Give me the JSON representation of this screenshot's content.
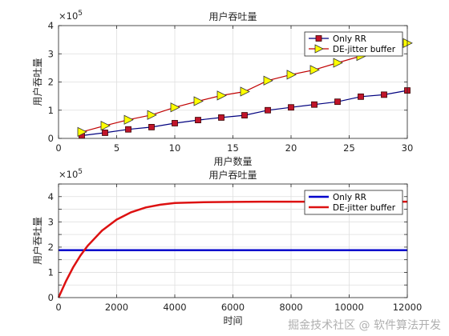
{
  "watermark": "掘金技术社区 @ 软件算法开发",
  "chart_data": [
    {
      "type": "line",
      "title": "用户吞吐量",
      "xlabel": "用户数量",
      "ylabel": "用户吞吐量",
      "exponent_label": "×10",
      "exponent_power": "5",
      "xlim": [
        0,
        30
      ],
      "ylim": [
        0,
        4
      ],
      "xticks": [
        "0",
        "5",
        "10",
        "15",
        "20",
        "25",
        "30"
      ],
      "yticks": [
        "0",
        "1",
        "2",
        "3",
        "4"
      ],
      "grid": true,
      "legend_position": "top-right",
      "x": [
        2,
        4,
        6,
        8,
        10,
        12,
        14,
        16,
        18,
        20,
        22,
        24,
        26,
        28,
        30
      ],
      "series": [
        {
          "name": "Only RR",
          "color": "#00007f",
          "marker": "square",
          "marker_color": "#c0142a",
          "values": [
            0.1,
            0.2,
            0.32,
            0.4,
            0.54,
            0.65,
            0.74,
            0.82,
            1.0,
            1.1,
            1.2,
            1.3,
            1.48,
            1.55,
            1.7
          ]
        },
        {
          "name": "DE-jitter buffer",
          "color": "#c00000",
          "marker": "triangle-right",
          "marker_color": "#ffff00",
          "values": [
            0.23,
            0.45,
            0.66,
            0.83,
            1.1,
            1.32,
            1.52,
            1.66,
            2.05,
            2.26,
            2.43,
            2.68,
            2.92,
            3.14,
            3.38
          ]
        }
      ]
    },
    {
      "type": "line",
      "title": "用户吞吐量",
      "xlabel": "时间",
      "ylabel": "用户吞吐量",
      "exponent_label": "×10",
      "exponent_power": "5",
      "xlim": [
        0,
        12000
      ],
      "ylim": [
        0,
        4.5
      ],
      "xticks": [
        "0",
        "2000",
        "4000",
        "6000",
        "8000",
        "10000",
        "12000"
      ],
      "yticks": [
        "0",
        "0.5",
        "1",
        "1.5",
        "2",
        "2.5",
        "3",
        "3.5",
        "4",
        "4.5"
      ],
      "ytick_labels": [
        "0",
        "",
        "1",
        "",
        "2",
        "",
        "3",
        "",
        "4",
        ""
      ],
      "grid": true,
      "legend_position": "top-right",
      "x": [
        0,
        250,
        500,
        750,
        1000,
        1500,
        2000,
        2500,
        3000,
        3500,
        4000,
        5000,
        6000,
        7000,
        8000,
        9000,
        10000,
        11000,
        12000
      ],
      "series": [
        {
          "name": "Only RR",
          "color": "#0000cc",
          "values": [
            1.88,
            1.88,
            1.88,
            1.88,
            1.88,
            1.88,
            1.88,
            1.88,
            1.88,
            1.88,
            1.88,
            1.88,
            1.88,
            1.88,
            1.88,
            1.88,
            1.88,
            1.88,
            1.88
          ]
        },
        {
          "name": "DE-jitter buffer",
          "color": "#dd1111",
          "values": [
            0.0,
            0.64,
            1.19,
            1.66,
            2.05,
            2.66,
            3.09,
            3.38,
            3.57,
            3.68,
            3.75,
            3.78,
            3.79,
            3.8,
            3.8,
            3.8,
            3.8,
            3.8,
            3.8
          ]
        }
      ]
    }
  ]
}
